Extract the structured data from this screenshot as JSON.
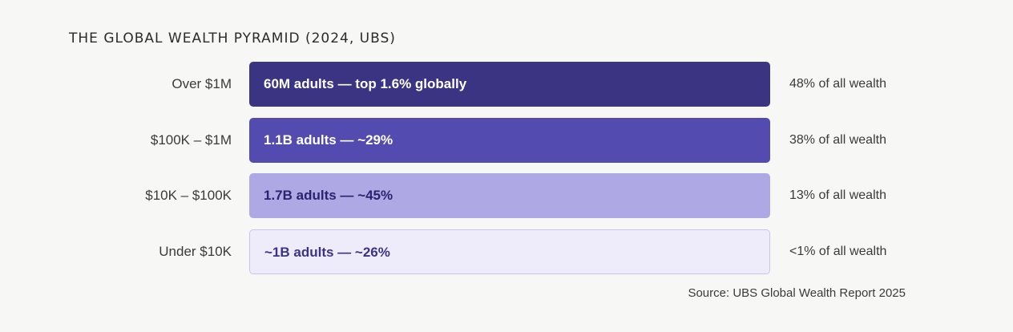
{
  "chart_data": {
    "type": "bar",
    "title": "THE GLOBAL WEALTH PYRAMID (2024, UBS)",
    "source": "Source: UBS Global Wealth Report 2025",
    "tiers": [
      {
        "label": "Over $1M",
        "bar_text": "60M adults — top 1.6% globally",
        "share_text": "48% of all wealth",
        "wealth_share_pct": 48,
        "color": "#3b3482",
        "text_color": "#ffffff",
        "border": "none"
      },
      {
        "label": "$100K – $1M",
        "bar_text": "1.1B adults — ~29%",
        "share_text": "38% of all wealth",
        "wealth_share_pct": 38,
        "color": "#534bb0",
        "text_color": "#ffffff",
        "border": "none"
      },
      {
        "label": "$10K – $100K",
        "bar_text": "1.7B adults — ~45%",
        "share_text": "13% of all wealth",
        "wealth_share_pct": 13,
        "color": "#aea8e4",
        "text_color": "#2a2470",
        "border": "none"
      },
      {
        "label": "Under $10K",
        "bar_text": "~1B adults — ~26%",
        "share_text": "<1% of all wealth",
        "wealth_share_pct": 1,
        "color": "#eeecfb",
        "text_color": "#3b3482",
        "border": "#c9c4ee"
      }
    ]
  }
}
